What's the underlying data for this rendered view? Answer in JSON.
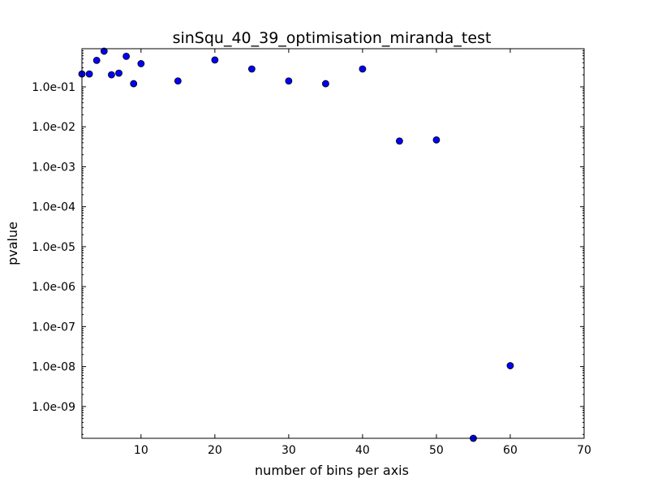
{
  "chart_data": {
    "type": "scatter",
    "title": "sinSqu_40_39_optimisation_miranda_test",
    "xlabel": "number of bins per axis",
    "ylabel": "pvalue",
    "xscale": "linear",
    "yscale": "log",
    "xlim": [
      2,
      70
    ],
    "ylim": [
      1.6e-10,
      0.9
    ],
    "x_ticks": [
      {
        "value": 10,
        "label": "10"
      },
      {
        "value": 20,
        "label": "20"
      },
      {
        "value": 30,
        "label": "30"
      },
      {
        "value": 40,
        "label": "40"
      },
      {
        "value": 50,
        "label": "50"
      },
      {
        "value": 60,
        "label": "60"
      },
      {
        "value": 70,
        "label": "70"
      }
    ],
    "y_ticks": [
      {
        "value": 1e-09,
        "label": "1.0e-09"
      },
      {
        "value": 1e-08,
        "label": "1.0e-08"
      },
      {
        "value": 1e-07,
        "label": "1.0e-07"
      },
      {
        "value": 1e-06,
        "label": "1.0e-06"
      },
      {
        "value": 1e-05,
        "label": "1.0e-05"
      },
      {
        "value": 0.0001,
        "label": "1.0e-04"
      },
      {
        "value": 0.001,
        "label": "1.0e-03"
      },
      {
        "value": 0.01,
        "label": "1.0e-02"
      },
      {
        "value": 0.1,
        "label": "1.0e-01"
      }
    ],
    "grid": false,
    "marker_color": "#0000ff",
    "points": [
      {
        "x": 2,
        "y": 0.21
      },
      {
        "x": 3,
        "y": 0.21
      },
      {
        "x": 4,
        "y": 0.46
      },
      {
        "x": 5,
        "y": 0.78
      },
      {
        "x": 6,
        "y": 0.2
      },
      {
        "x": 7,
        "y": 0.22
      },
      {
        "x": 8,
        "y": 0.58
      },
      {
        "x": 9,
        "y": 0.12
      },
      {
        "x": 10,
        "y": 0.38
      },
      {
        "x": 15,
        "y": 0.14
      },
      {
        "x": 20,
        "y": 0.47
      },
      {
        "x": 25,
        "y": 0.28
      },
      {
        "x": 30,
        "y": 0.14
      },
      {
        "x": 35,
        "y": 0.12
      },
      {
        "x": 40,
        "y": 0.28
      },
      {
        "x": 45,
        "y": 0.0044
      },
      {
        "x": 50,
        "y": 0.0047
      },
      {
        "x": 55,
        "y": 1.6e-10
      },
      {
        "x": 60,
        "y": 1.05e-08
      }
    ]
  }
}
